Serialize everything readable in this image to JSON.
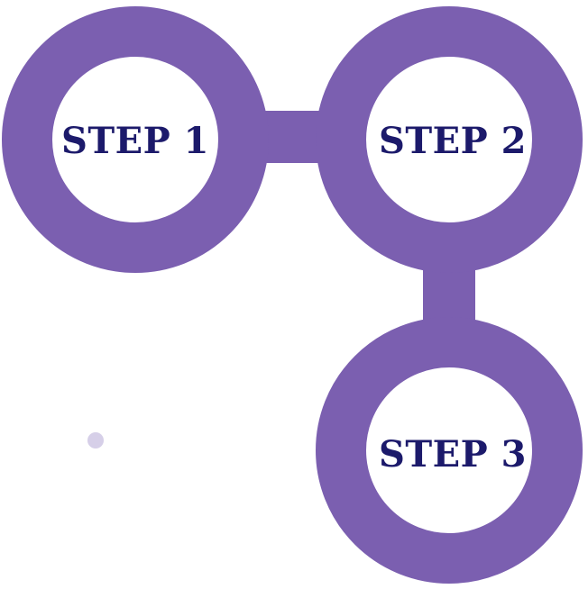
{
  "colors": {
    "ring": "#7b5fb0",
    "text": "#1c1a6b",
    "background": "#ffffff",
    "speck": "#d6cfe8"
  },
  "steps": [
    {
      "label": "STEP 1"
    },
    {
      "label": "STEP 2"
    },
    {
      "label": "STEP 3"
    }
  ]
}
